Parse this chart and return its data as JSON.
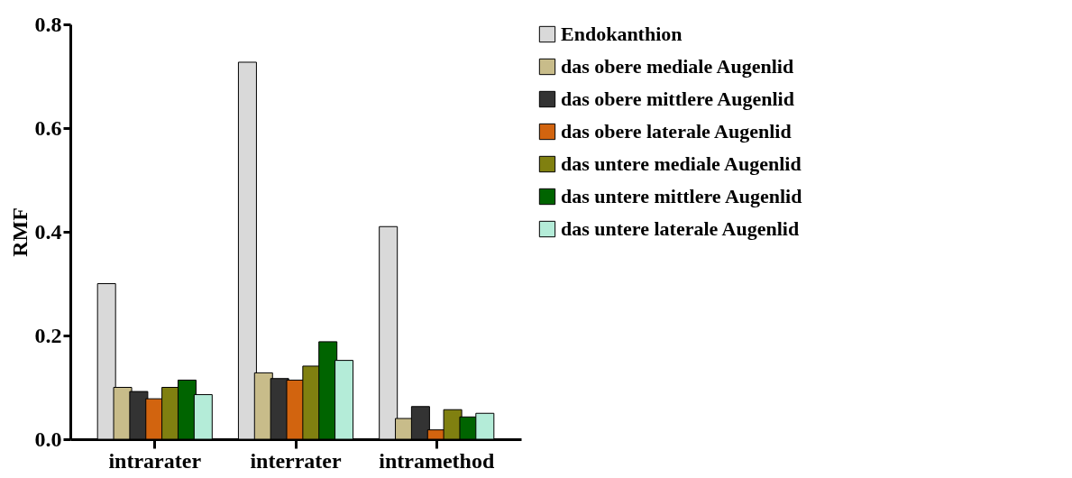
{
  "chart_data": {
    "type": "bar",
    "ylabel": "RMF",
    "categories": [
      "intrarater",
      "interrater",
      "intramethod"
    ],
    "series": [
      {
        "name": "Endokanthion",
        "color": "#d9d9d9",
        "values": [
          0.3,
          0.727,
          0.41
        ]
      },
      {
        "name": "das obere mediale Augenlid",
        "color": "#c8bc8a",
        "values": [
          0.1,
          0.128,
          0.04
        ]
      },
      {
        "name": "das obere mittlere Augenlid",
        "color": "#333333",
        "values": [
          0.092,
          0.117,
          0.063
        ]
      },
      {
        "name": "das obere laterale Augenlid",
        "color": "#d2640f",
        "values": [
          0.078,
          0.114,
          0.018
        ]
      },
      {
        "name": "das untere mediale Augenlid",
        "color": "#808010",
        "values": [
          0.1,
          0.141,
          0.057
        ]
      },
      {
        "name": "das untere mittlere Augenlid",
        "color": "#006400",
        "values": [
          0.114,
          0.188,
          0.043
        ]
      },
      {
        "name": "das untere laterale Augenlid",
        "color": "#b4ecd8",
        "values": [
          0.086,
          0.152,
          0.05
        ]
      }
    ],
    "ylim": [
      0,
      0.8
    ],
    "yticks": [
      {
        "value": 0,
        "label": "0.0"
      },
      {
        "value": 0.2,
        "label": "0.2"
      },
      {
        "value": 0.4,
        "label": "0.4"
      },
      {
        "value": 0.6,
        "label": "0.6"
      },
      {
        "value": 0.8,
        "label": "0.8"
      }
    ],
    "grid": false,
    "legend": "right"
  }
}
